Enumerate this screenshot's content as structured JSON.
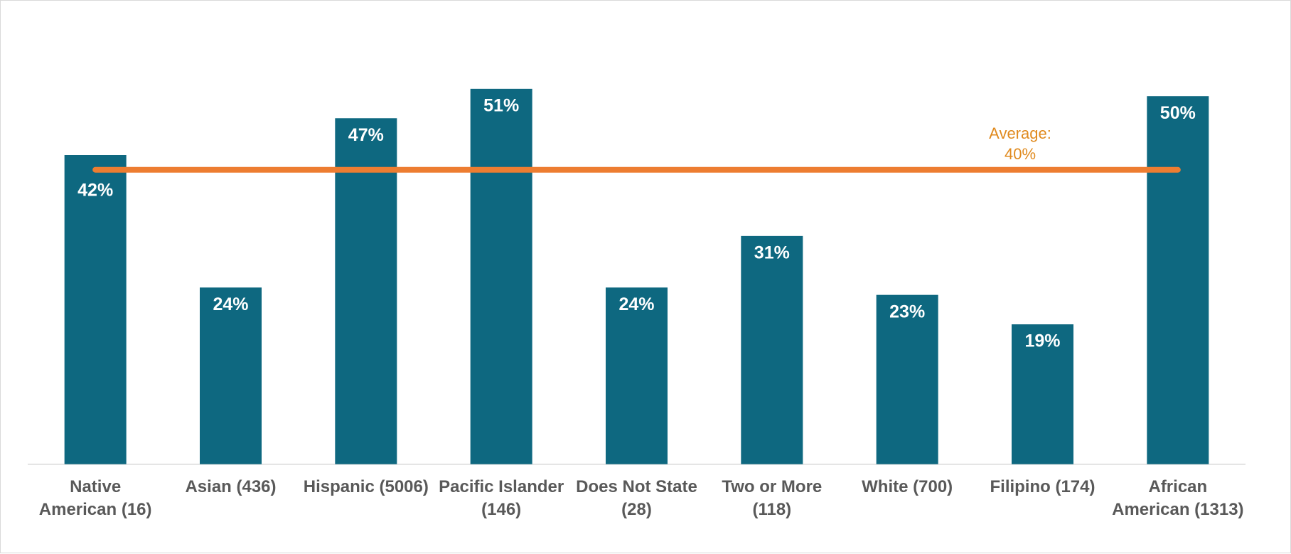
{
  "chart_data": {
    "type": "bar",
    "categories": [
      "Native American (16)",
      "Asian (436)",
      "Hispanic (5006)",
      "Pacific Islander (146)",
      "Does Not State (28)",
      "Two or More (118)",
      "White (700)",
      "Filipino (174)",
      "African American (1313)"
    ],
    "values": [
      42,
      24,
      47,
      51,
      24,
      31,
      23,
      19,
      50
    ],
    "value_labels": [
      "42%",
      "24%",
      "47%",
      "51%",
      "24%",
      "31%",
      "23%",
      "19%",
      "50%"
    ],
    "color": "#0e6880",
    "average": {
      "label": "Average:",
      "value": 40,
      "value_label": "40%",
      "color": "#ed7d31",
      "text_color": "#e08a1e"
    }
  }
}
